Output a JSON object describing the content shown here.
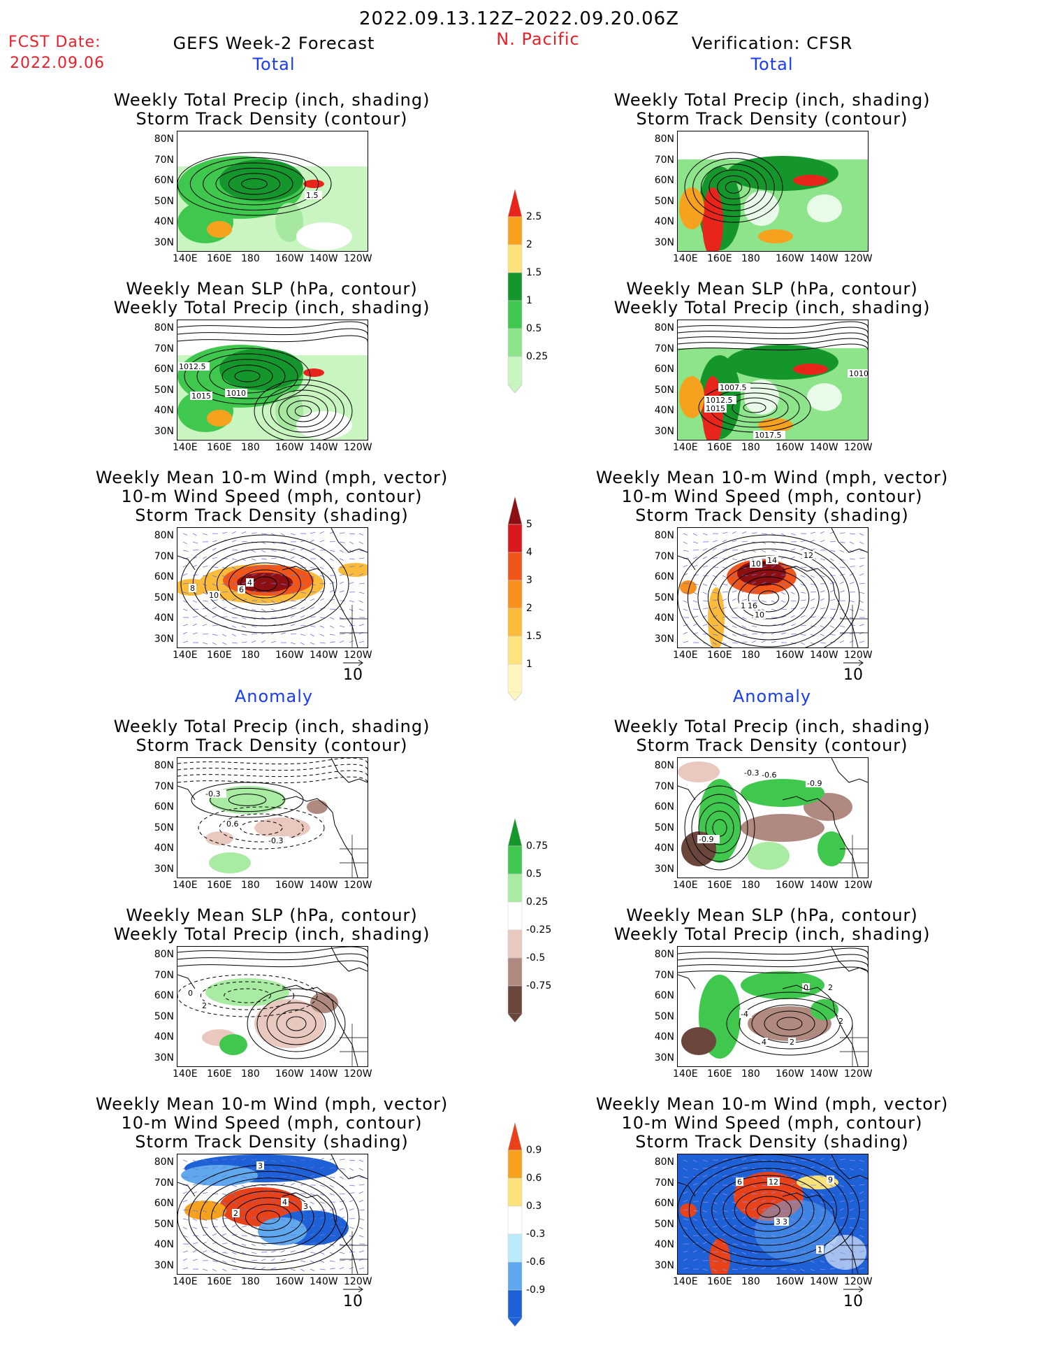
{
  "header": {
    "date_range": "2022.09.13.12Z–2022.09.20.06Z",
    "fcst_label": "FCST Date:",
    "fcst_date": "2022.09.06",
    "forecast_title": "GEFS Week-2 Forecast",
    "region": "N. Pacific",
    "verification": "Verification: CFSR",
    "total_label": "Total",
    "anomaly_label": "Anomaly"
  },
  "titles": {
    "precip_track": [
      "Weekly Total Precip (inch, shading)",
      "Storm Track Density (contour)"
    ],
    "slp_precip": [
      "Weekly Mean SLP (hPa, contour)",
      "Weekly Total Precip (inch, shading)"
    ],
    "wind_track": [
      "Weekly Mean 10-m Wind (mph, vector)",
      "10-m Wind Speed (mph, contour)",
      "Storm Track Density (shading)"
    ]
  },
  "axes": {
    "lat": [
      "80N",
      "70N",
      "60N",
      "50N",
      "40N",
      "30N"
    ],
    "lon": [
      "140E",
      "160E",
      "180",
      "160W",
      "140W",
      "120W"
    ]
  },
  "vector_ref": "10",
  "colorbars": {
    "precip_total": {
      "labels": [
        "2.5",
        "2",
        "1.5",
        "1",
        "0.5",
        "0.25"
      ],
      "colors": [
        "#e8251b",
        "#f7a21f",
        "#fbe17a",
        "#15962d",
        "#3fc84d",
        "#8ee48a",
        "#c8f5c0"
      ]
    },
    "track_total": {
      "labels": [
        "5",
        "4",
        "3",
        "2",
        "1.5",
        "1"
      ],
      "colors": [
        "#8c0f12",
        "#d9171c",
        "#f0561a",
        "#f7901c",
        "#fbbb3a",
        "#fde37e",
        "#fff6bf"
      ]
    },
    "precip_anom": {
      "labels": [
        "0.75",
        "0.5",
        "0.25",
        "-0.25",
        "-0.5",
        "-0.75"
      ],
      "colors": [
        "#15962d",
        "#3fc84d",
        "#a9eba2",
        "#ffffff",
        "#e9c9bf",
        "#b08a80",
        "#6b463c"
      ]
    },
    "track_anom": {
      "labels": [
        "0.9",
        "0.6",
        "0.3",
        "-0.3",
        "-0.6",
        "-0.9"
      ],
      "colors": [
        "#e8421a",
        "#f7a21f",
        "#fbe17a",
        "#ffffff",
        "#b9ecf8",
        "#5fa8ee",
        "#1e61d6"
      ]
    }
  },
  "contour_labels": {
    "p1l": [
      "1.5"
    ],
    "p2l": [
      "1012.5",
      "1015",
      "1010"
    ],
    "p2r": [
      "1007.5",
      "1012.5",
      "1015",
      "1017.5",
      "1010"
    ],
    "p3l": [
      "8",
      "10",
      "6",
      "4"
    ],
    "p3r": [
      "10",
      "14",
      "12",
      "12",
      "16",
      "10"
    ],
    "a1r": [
      "-0.3",
      "-0.6",
      "-0.9",
      "-0.9"
    ],
    "a1l": [
      "-0.3",
      "0.6",
      "-0.3"
    ],
    "a2l": [
      "0",
      "2"
    ],
    "a2r": [
      "0",
      "2",
      "-4",
      "4",
      "2",
      "2"
    ],
    "a3l": [
      "3",
      "2",
      "4",
      "3"
    ],
    "a3r": [
      "6",
      "12",
      "9",
      "3",
      "3",
      "1"
    ]
  }
}
